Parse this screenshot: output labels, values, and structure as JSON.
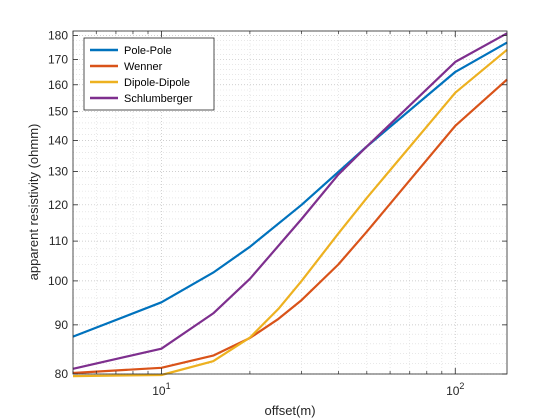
{
  "chart_data": {
    "type": "line",
    "xscale": "log",
    "yscale": "log",
    "xlabel": "offset(m)",
    "ylabel": "apparent resistivity (ohmm)",
    "xlim": [
      5,
      150
    ],
    "ylim": [
      80,
      182
    ],
    "x_ticks": [
      {
        "value": 10,
        "base": "10",
        "exp": "1"
      },
      {
        "value": 100,
        "base": "10",
        "exp": "2"
      }
    ],
    "y_ticks": [
      {
        "value": 80,
        "label": "80"
      },
      {
        "value": 90,
        "label": "90"
      },
      {
        "value": 100,
        "label": "100"
      },
      {
        "value": 110,
        "label": "110"
      },
      {
        "value": 120,
        "label": "120"
      },
      {
        "value": 130,
        "label": "130"
      },
      {
        "value": 140,
        "label": "140"
      },
      {
        "value": 150,
        "label": "150"
      },
      {
        "value": 160,
        "label": "160"
      },
      {
        "value": 170,
        "label": "170"
      },
      {
        "value": 180,
        "label": "180"
      }
    ],
    "grid": true,
    "minor_grid": true,
    "legend_position": "top-left",
    "series": [
      {
        "name": "Pole-Pole",
        "color": "#0072BD",
        "x": [
          5,
          10,
          15,
          20,
          30,
          50,
          100,
          150
        ],
        "y": [
          87.5,
          95,
          102,
          108.5,
          120,
          138,
          165,
          177
        ]
      },
      {
        "name": "Wenner",
        "color": "#D95319",
        "x": [
          5,
          10,
          15,
          20,
          25,
          30,
          40,
          50,
          100,
          150
        ],
        "y": [
          80.2,
          81.2,
          83.6,
          87.2,
          91.3,
          95.5,
          104,
          112.5,
          145,
          162
        ]
      },
      {
        "name": "Dipole-Dipole",
        "color": "#EDB120",
        "x": [
          5,
          10,
          15,
          20,
          25,
          30,
          40,
          50,
          100,
          150
        ],
        "y": [
          79.6,
          79.8,
          82.5,
          87.3,
          93.5,
          100,
          112,
          122,
          157,
          174
        ]
      },
      {
        "name": "Schlumberger",
        "color": "#7E2F8E",
        "x": [
          5,
          10,
          15,
          20,
          30,
          40,
          50,
          100,
          150
        ],
        "y": [
          81,
          85,
          92.5,
          100.5,
          116,
          129,
          138,
          169,
          181
        ]
      }
    ]
  }
}
